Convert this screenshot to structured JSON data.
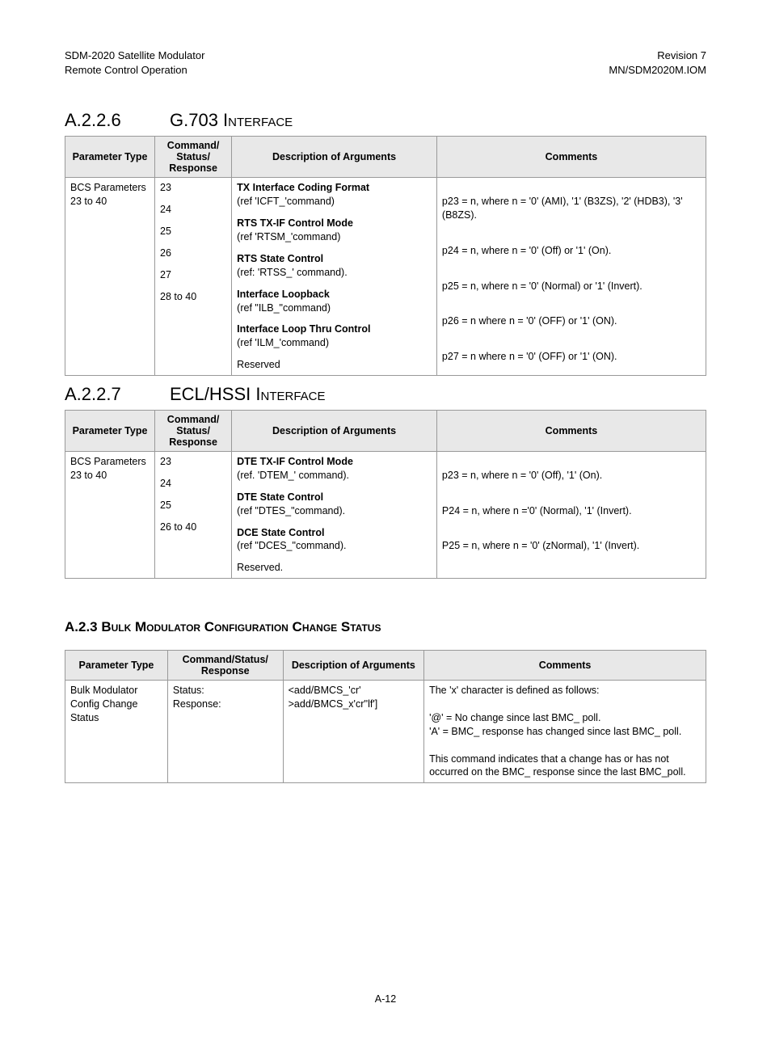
{
  "header": {
    "left1": "SDM-2020 Satellite Modulator",
    "left2": "Remote Control Operation",
    "right1": "Revision 7",
    "right2": "MN/SDM2020M.IOM"
  },
  "section1": {
    "number": "A.2.2.6",
    "title": "G.703 Interface",
    "columns": [
      "Parameter Type",
      "Command/ Status/ Response",
      "Description of Arguments",
      "Comments"
    ],
    "param_type": "BCS Parameters 23 to 40",
    "rows": [
      {
        "csr": "23",
        "desc_bold": "TX Interface Coding Format",
        "desc_rest": "(ref 'ICFT_'command)",
        "comment": "p23 = n, where n = '0' (AMI), '1' (B3ZS), '2' (HDB3), '3' (B8ZS)."
      },
      {
        "csr": "24",
        "desc_bold": "RTS TX-IF Control Mode",
        "desc_rest": "(ref 'RTSM_'command)",
        "comment": "p24 = n, where n = '0' (Off) or '1' (On)."
      },
      {
        "csr": "25",
        "desc_bold": "RTS State Control",
        "desc_rest": "(ref: 'RTSS_' command).",
        "comment": "p25 = n, where n = '0' (Normal) or '1' (Invert)."
      },
      {
        "csr": "26",
        "desc_bold": "Interface Loopback",
        "desc_rest": "(ref \"ILB_\"command)",
        "comment": "p26 = n where n = '0' (OFF) or '1' (ON)."
      },
      {
        "csr": "27",
        "desc_bold": "Interface Loop Thru Control",
        "desc_rest": "(ref 'ILM_'command)",
        "comment": "p27 = n where n = '0' (OFF) or '1' (ON)."
      },
      {
        "csr": "28 to 40",
        "desc_bold": "",
        "desc_rest": "Reserved",
        "comment": ""
      }
    ]
  },
  "section2": {
    "number": "A.2.2.7",
    "title": "ECL/HSSI Interface",
    "columns": [
      "Parameter Type",
      "Command/ Status/ Response",
      "Description of Arguments",
      "Comments"
    ],
    "param_type": "BCS Parameters 23 to 40",
    "rows": [
      {
        "csr": "23",
        "desc_bold": "DTE TX-IF Control Mode",
        "desc_rest": "(ref. 'DTEM_' command).",
        "comment": "p23 = n, where n = '0' (Off), '1' (On)."
      },
      {
        "csr": "24",
        "desc_bold": "DTE State Control",
        "desc_rest": "(ref \"DTES_\"command).",
        "comment": "P24 = n, where n ='0' (Normal), '1' (Invert)."
      },
      {
        "csr": "25",
        "desc_bold": "DCE State Control",
        "desc_rest": "(ref \"DCES_\"command).",
        "comment": "P25 = n, where n = '0' (zNormal), '1' (Invert)."
      },
      {
        "csr": "26 to 40",
        "desc_bold": "",
        "desc_rest": "Reserved.",
        "comment": ""
      }
    ]
  },
  "section3": {
    "title": "A.2.3 Bulk Modulator Configuration Change Status",
    "columns": [
      "Parameter Type",
      "Command/Status/ Response",
      "Description of Arguments",
      "Comments"
    ],
    "row": {
      "param": "Bulk Modulator Config Change Status",
      "csr": "Status:\nResponse:",
      "desc": "<add/BMCS_'cr'\n>add/BMCS_x'cr''lf']",
      "comment": "The 'x' character is defined as follows:\n\n'@' = No change since last BMC_ poll.\n'A' = BMC_ response has changed since last BMC_ poll.\n\nThis command indicates that a change has or has not occurred on the BMC_ response since the last BMC_poll."
    }
  },
  "page_number": "A-12"
}
